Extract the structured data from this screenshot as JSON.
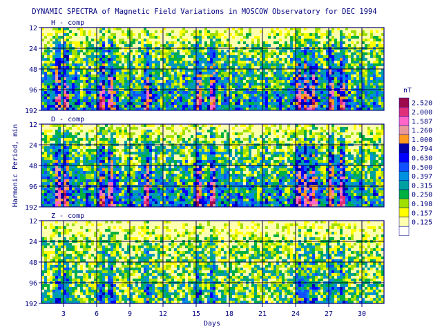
{
  "chart_data": {
    "type": "heatmap",
    "title": "DYNAMIC SPECTRA of Magnetic Field Variations in MOSCOW Observatory for DEC 1994",
    "xlabel": "Days",
    "ylabel": "Harmonic Period, min",
    "x_ticks": [
      3,
      6,
      9,
      12,
      15,
      18,
      21,
      24,
      27,
      30
    ],
    "xlim": [
      1,
      32
    ],
    "y_scale": "log",
    "y_ticks": [
      12,
      24,
      48,
      96,
      192
    ],
    "ylim": [
      12,
      192
    ],
    "grid": true,
    "panels": [
      {
        "label": "H - comp",
        "active_days": [
          2.5,
          3.2,
          6.5,
          7.3,
          10.6,
          15.2,
          16.5,
          24.3,
          24.9,
          25.6,
          27.2,
          28.2
        ],
        "intensity": 1.0
      },
      {
        "label": "D - comp",
        "active_days": [
          2.5,
          3.2,
          6.5,
          7.3,
          10.6,
          15.2,
          16.5,
          24.3,
          24.9,
          25.6,
          27.2,
          28.2
        ],
        "intensity": 1.05
      },
      {
        "label": "Z - comp",
        "active_days": [
          2.5,
          3.2,
          6.5,
          7.3,
          10.6,
          15.2,
          16.5,
          24.3,
          24.9,
          25.6,
          27.2,
          28.2
        ],
        "intensity": 0.55
      }
    ],
    "colorbar": {
      "unit": "nT",
      "levels": [
        "2.520",
        "2.000",
        "1.587",
        "1.260",
        "1.000",
        "0.794",
        "0.630",
        "0.500",
        "0.397",
        "0.315",
        "0.250",
        "0.198",
        "0.157",
        "0.125"
      ],
      "colors": [
        "#9b0a4a",
        "#e0307a",
        "#ff66c8",
        "#e89a9a",
        "#ff9a20",
        "#0000aa",
        "#0000ff",
        "#1050ff",
        "#0090e0",
        "#00a0a0",
        "#00b040",
        "#a0e000",
        "#ffff00",
        "#ffffb0"
      ]
    }
  }
}
